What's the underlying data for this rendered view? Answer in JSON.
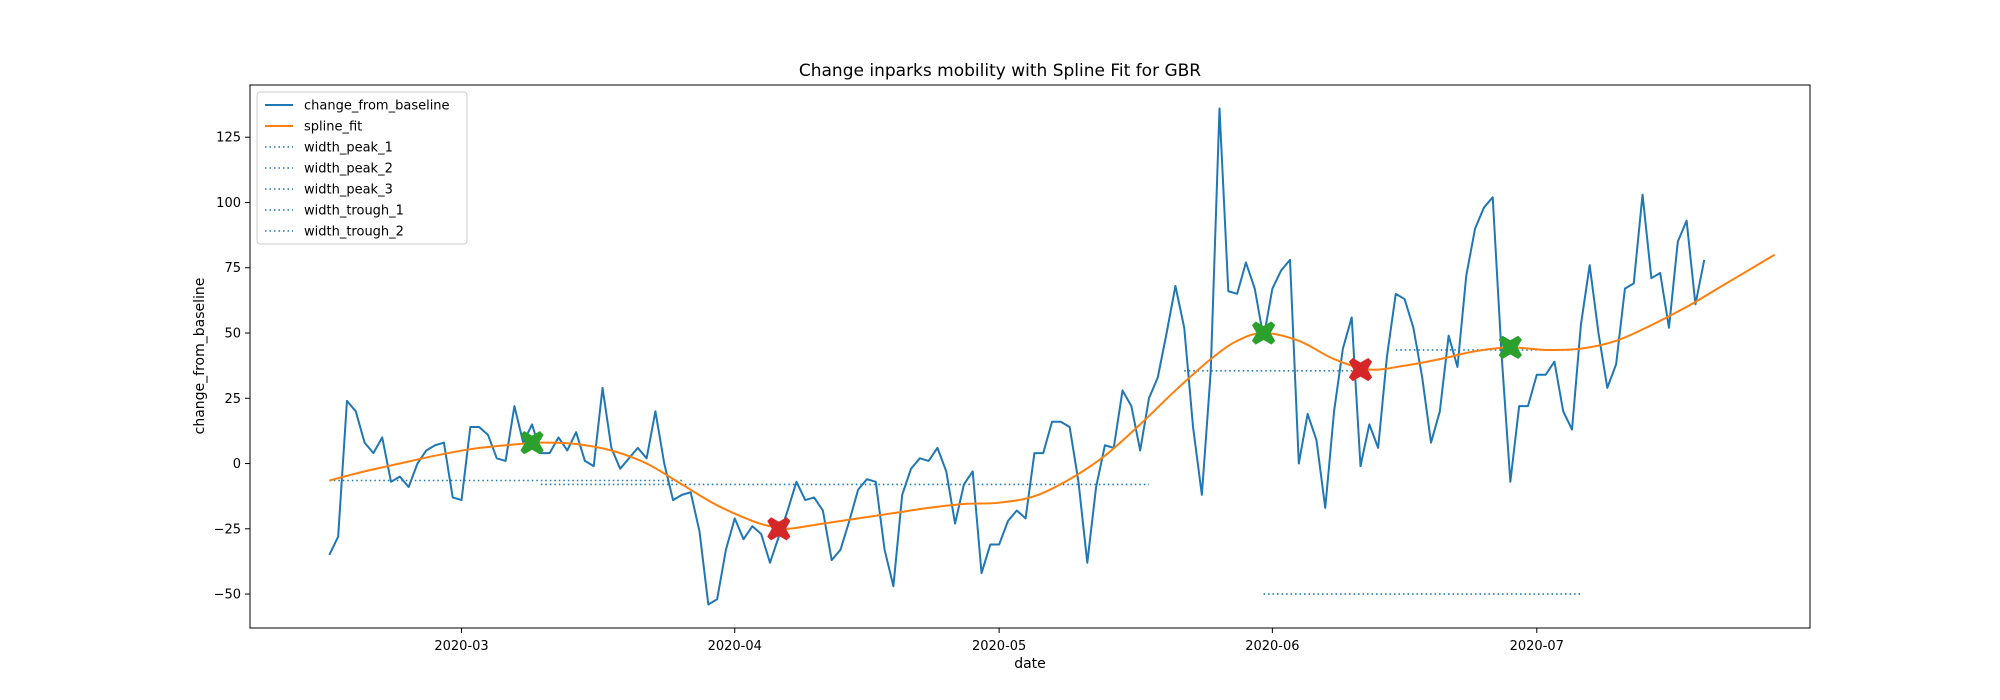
{
  "chart_data": {
    "type": "line",
    "title": "Change inparks mobility with Spline Fit for GBR",
    "xlabel": "date",
    "ylabel": "change_from_baseline",
    "x_start": "2020-02-15",
    "xlim": [
      "2020-02-06",
      "2020-08-01"
    ],
    "ylim": [
      -63,
      145
    ],
    "grid": false,
    "legend_position": "upper-left",
    "x_ticks": [
      "2020-03-01",
      "2020-04-01",
      "2020-05-01",
      "2020-06-01",
      "2020-07-01"
    ],
    "x_tick_labels": [
      "2020-03",
      "2020-04",
      "2020-05",
      "2020-06",
      "2020-07"
    ],
    "y_ticks": [
      -50,
      -25,
      0,
      25,
      50,
      75,
      100,
      125
    ],
    "series": [
      {
        "name": "change_from_baseline",
        "color": "#1f77b4",
        "values": [
          -35,
          -28,
          24,
          20,
          8,
          4,
          10,
          -7,
          -5,
          -9,
          0,
          5,
          7,
          8,
          -13,
          -14,
          14,
          14,
          11,
          2,
          1,
          22,
          8,
          15,
          4,
          4,
          10,
          5,
          12,
          1,
          -1,
          29,
          6,
          -2,
          2,
          6,
          2,
          20,
          0,
          -14,
          -12,
          -11,
          -26,
          -54,
          -52,
          -33,
          -21,
          -29,
          -24,
          -27,
          -38,
          -28,
          -18,
          -7,
          -14,
          -13,
          -18,
          -37,
          -33,
          -22,
          -10,
          -6,
          -7,
          -33,
          -47,
          -12,
          -2,
          2,
          1,
          6,
          -3,
          -23,
          -8,
          -3,
          -42,
          -31,
          -31,
          -22,
          -18,
          -21,
          4,
          4,
          16,
          16,
          14,
          -7,
          -38,
          -9,
          7,
          6,
          28,
          22,
          5,
          25,
          33,
          50,
          68,
          52,
          14,
          -12,
          35,
          136,
          66,
          65,
          77,
          67,
          48,
          67,
          74,
          78,
          0,
          19,
          9,
          -17,
          20,
          44,
          56,
          -1,
          15,
          6,
          41,
          65,
          63,
          52,
          33,
          8,
          20,
          49,
          37,
          72,
          90,
          98,
          102,
          42,
          -7,
          22,
          22,
          34,
          34,
          39,
          20,
          13,
          53,
          76,
          50,
          29,
          38,
          67,
          69,
          103,
          71,
          73,
          52,
          85,
          93,
          61,
          78
        ]
      },
      {
        "name": "spline_fit",
        "color": "#ff7f0e",
        "knots": [
          [
            0,
            -6.5
          ],
          [
            4,
            -3
          ],
          [
            8,
            0
          ],
          [
            12,
            3
          ],
          [
            16,
            5.5
          ],
          [
            20,
            7
          ],
          [
            24,
            8
          ],
          [
            28,
            7.5
          ],
          [
            32,
            5
          ],
          [
            36,
            0
          ],
          [
            40,
            -8
          ],
          [
            44,
            -16
          ],
          [
            48,
            -22
          ],
          [
            50,
            -24
          ],
          [
            52,
            -25
          ],
          [
            56,
            -23
          ],
          [
            60,
            -21
          ],
          [
            64,
            -19
          ],
          [
            68,
            -17
          ],
          [
            72,
            -15.5
          ],
          [
            76,
            -15
          ],
          [
            80,
            -12.5
          ],
          [
            84,
            -6
          ],
          [
            88,
            3
          ],
          [
            92,
            15
          ],
          [
            96,
            28
          ],
          [
            100,
            40
          ],
          [
            103,
            47
          ],
          [
            106,
            50
          ],
          [
            110,
            47
          ],
          [
            114,
            40
          ],
          [
            118,
            36
          ],
          [
            122,
            37.5
          ],
          [
            126,
            40
          ],
          [
            130,
            43
          ],
          [
            134,
            44.5
          ],
          [
            138,
            43.5
          ],
          [
            142,
            44
          ],
          [
            146,
            47
          ],
          [
            150,
            53
          ],
          [
            154,
            60
          ],
          [
            158,
            68
          ],
          [
            162,
            76
          ],
          [
            164,
            80
          ]
        ]
      }
    ],
    "width_lines": [
      {
        "name": "width_peak_1",
        "color": "#1f77b4",
        "style": "dotted",
        "y": -6.5,
        "x_start": 0,
        "x_end": 40
      },
      {
        "name": "width_peak_2",
        "color": "#1f77b4",
        "style": "dotted",
        "y": 35.5,
        "x_start": 97,
        "x_end": 118
      },
      {
        "name": "width_peak_3",
        "color": "#1f77b4",
        "style": "dotted",
        "y": 43.5,
        "x_start": 121,
        "x_end": 141
      },
      {
        "name": "width_trough_1",
        "color": "#1f77b4",
        "style": "dotted",
        "y": -8,
        "x_start": 24,
        "x_end": 93
      },
      {
        "name": "width_trough_2",
        "color": "#1f77b4",
        "style": "dotted",
        "y": -50,
        "x_start": 106,
        "x_end": 142
      }
    ],
    "markers": [
      {
        "type": "peak",
        "x": 23,
        "y": 8,
        "color": "#2ca02c"
      },
      {
        "type": "peak",
        "x": 106,
        "y": 50,
        "color": "#2ca02c"
      },
      {
        "type": "peak",
        "x": 134,
        "y": 44.5,
        "color": "#2ca02c"
      },
      {
        "type": "trough",
        "x": 51,
        "y": -25,
        "color": "#d62728"
      },
      {
        "type": "trough",
        "x": 117,
        "y": 36,
        "color": "#d62728"
      }
    ],
    "legend": [
      {
        "label": "change_from_baseline",
        "color": "#1f77b4",
        "style": "solid"
      },
      {
        "label": "spline_fit",
        "color": "#ff7f0e",
        "style": "solid"
      },
      {
        "label": "width_peak_1",
        "color": "#1f77b4",
        "style": "dotted"
      },
      {
        "label": "width_peak_2",
        "color": "#1f77b4",
        "style": "dotted"
      },
      {
        "label": "width_peak_3",
        "color": "#1f77b4",
        "style": "dotted"
      },
      {
        "label": "width_trough_1",
        "color": "#1f77b4",
        "style": "dotted"
      },
      {
        "label": "width_trough_2",
        "color": "#1f77b4",
        "style": "dotted"
      }
    ]
  }
}
